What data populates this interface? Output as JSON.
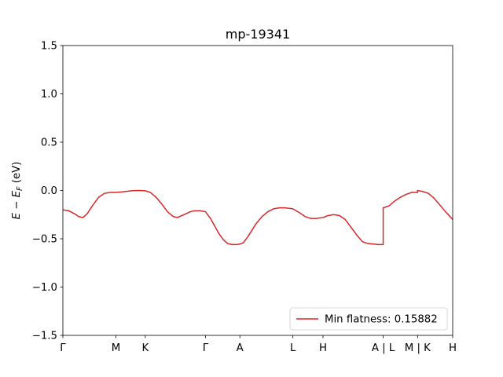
{
  "chart_data": {
    "type": "line",
    "title": "mp-19341",
    "ylabel": "E − E_F (eV)",
    "ylabel_main": "E − E",
    "ylabel_sub": "F",
    "ylabel_unit": " (eV)",
    "xlabel": "",
    "ylim": [
      -1.5,
      1.5
    ],
    "xlim": [
      0,
      5.44
    ],
    "yticks": [
      -1.5,
      -1.0,
      -0.5,
      0.0,
      0.5,
      1.0,
      1.5
    ],
    "ytick_labels": [
      "−1.5",
      "−1.0",
      "−0.5",
      "0.0",
      "0.5",
      "1.0",
      "1.5"
    ],
    "xticks": [
      {
        "pos": 0.0,
        "label": "Γ"
      },
      {
        "pos": 0.74,
        "label": "M"
      },
      {
        "pos": 1.15,
        "label": "K"
      },
      {
        "pos": 1.99,
        "label": "Γ"
      },
      {
        "pos": 2.47,
        "label": "A"
      },
      {
        "pos": 3.21,
        "label": "L"
      },
      {
        "pos": 3.63,
        "label": "H"
      },
      {
        "pos": 4.47,
        "label": "A | L"
      },
      {
        "pos": 4.95,
        "label": "M | K"
      },
      {
        "pos": 5.44,
        "label": "H"
      }
    ],
    "grid": false,
    "legend_position": "lower-right",
    "series": [
      {
        "name": "Min flatness: 0.15882",
        "color": "#d62728",
        "x": [
          0.0,
          0.08,
          0.16,
          0.22,
          0.28,
          0.34,
          0.42,
          0.5,
          0.58,
          0.66,
          0.74,
          0.82,
          0.9,
          0.98,
          1.06,
          1.15,
          1.22,
          1.3,
          1.38,
          1.46,
          1.54,
          1.6,
          1.66,
          1.72,
          1.78,
          1.84,
          1.92,
          1.99,
          2.06,
          2.12,
          2.18,
          2.24,
          2.3,
          2.36,
          2.42,
          2.47,
          2.52,
          2.58,
          2.64,
          2.7,
          2.78,
          2.86,
          2.94,
          3.02,
          3.1,
          3.21,
          3.3,
          3.38,
          3.46,
          3.54,
          3.63,
          3.7,
          3.78,
          3.86,
          3.94,
          4.02,
          4.1,
          4.18,
          4.26,
          4.34,
          4.4,
          4.47,
          4.47,
          4.55,
          4.63,
          4.71,
          4.79,
          4.87,
          4.95,
          4.95,
          5.02,
          5.1,
          5.18,
          5.26,
          5.34,
          5.44
        ],
        "y": [
          -0.2,
          -0.21,
          -0.24,
          -0.27,
          -0.28,
          -0.24,
          -0.15,
          -0.07,
          -0.03,
          -0.02,
          -0.02,
          -0.015,
          -0.008,
          -0.002,
          0.0,
          -0.003,
          -0.02,
          -0.07,
          -0.14,
          -0.22,
          -0.27,
          -0.28,
          -0.26,
          -0.24,
          -0.22,
          -0.21,
          -0.21,
          -0.22,
          -0.29,
          -0.37,
          -0.45,
          -0.51,
          -0.55,
          -0.56,
          -0.56,
          -0.555,
          -0.54,
          -0.48,
          -0.41,
          -0.34,
          -0.27,
          -0.22,
          -0.19,
          -0.18,
          -0.18,
          -0.19,
          -0.23,
          -0.27,
          -0.29,
          -0.29,
          -0.28,
          -0.26,
          -0.25,
          -0.26,
          -0.3,
          -0.38,
          -0.46,
          -0.53,
          -0.55,
          -0.555,
          -0.56,
          -0.56,
          -0.18,
          -0.16,
          -0.11,
          -0.07,
          -0.04,
          -0.02,
          -0.02,
          0.0,
          -0.01,
          -0.03,
          -0.08,
          -0.15,
          -0.22,
          -0.3
        ]
      }
    ]
  }
}
